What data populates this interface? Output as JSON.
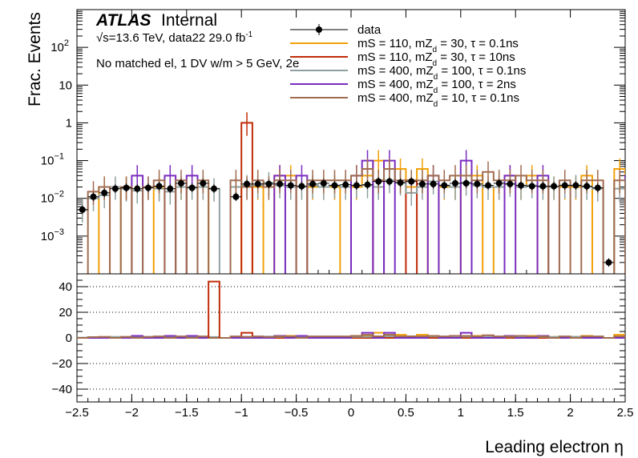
{
  "chart_data": {
    "type": "histogram",
    "x_range": [
      -2.5,
      2.5
    ],
    "xlabel": "Leading electron η",
    "ylabel": "Frac. Events",
    "top_panel": {
      "yscale": "log",
      "ylim": [
        0.0001,
        1000
      ],
      "y_ticks": [
        {
          "value": 0.001,
          "label": "10",
          "exp": "−3"
        },
        {
          "value": 0.01,
          "label": "10",
          "exp": "−2"
        },
        {
          "value": 0.1,
          "label": "10",
          "exp": "−1"
        },
        {
          "value": 1,
          "label": "1",
          "exp": ""
        },
        {
          "value": 10,
          "label": "10",
          "exp": ""
        },
        {
          "value": 100,
          "label": "10",
          "exp": "2"
        }
      ]
    },
    "ratio_panel": {
      "ylim": [
        -50,
        50
      ],
      "y_ticks": [
        40,
        20,
        0,
        -20,
        -40
      ],
      "gridlines": [
        40,
        20,
        0,
        -20,
        -40
      ]
    },
    "x_ticks": [
      "−2.5",
      "−2",
      "−1.5",
      "−1",
      "−0.5",
      "0",
      "0.5",
      "1",
      "1.5",
      "2",
      "2.5"
    ],
    "x_tick_values": [
      -2.5,
      -2,
      -1.5,
      -1,
      -0.5,
      0,
      0.5,
      1,
      1.5,
      2,
      2.5
    ],
    "bin_edges_start": -2.5,
    "bin_width": 0.1,
    "legend_position": "top-right",
    "series": [
      {
        "name": "data",
        "color": "#000000",
        "style": "points",
        "values": [
          0.005,
          0.011,
          0.014,
          0.018,
          0.019,
          0.018,
          0.019,
          0.021,
          0.018,
          0.025,
          0.019,
          0.025,
          0.018,
          null,
          0.011,
          0.024,
          0.024,
          0.024,
          0.024,
          0.022,
          0.021,
          0.024,
          0.025,
          0.022,
          0.023,
          0.022,
          0.023,
          0.028,
          0.028,
          0.026,
          0.028,
          0.024,
          0.024,
          0.022,
          0.025,
          0.025,
          0.024,
          0.022,
          0.025,
          0.024,
          0.022,
          0.021,
          0.021,
          0.021,
          0.022,
          0.022,
          0.021,
          0.019,
          0.0002,
          null,
          0.018,
          0.021,
          0.022,
          0.021,
          0.018,
          0.02,
          0.02,
          0.018,
          0.017,
          0.01,
          0.004
        ]
      },
      {
        "name": "mS = 110, mZ_d = 30, τ = 0.1ns",
        "color": "#f2a008",
        "style": "step",
        "values": [
          0,
          0,
          0.02,
          0.0,
          0.02,
          0,
          0,
          0.02,
          0,
          0.02,
          0,
          0.02,
          0,
          0,
          0.02,
          0.0,
          0.02,
          0,
          0.04,
          0.04,
          0,
          0.02,
          0.02,
          0.02,
          0,
          0.02,
          0.04,
          0.1,
          0.06,
          0.06,
          0.02,
          0.06,
          0,
          0.02,
          0.02,
          0,
          0.04,
          0,
          0.02,
          0.04,
          0.02,
          0.04,
          0,
          0.02,
          0.02,
          0.02,
          0.04,
          0,
          0,
          0.06,
          0.02,
          0,
          0.02,
          0.02,
          0.02,
          0,
          0.02,
          0,
          0,
          0,
          0
        ]
      },
      {
        "name": "mS = 110, mZ_d = 30, τ = 10ns",
        "color": "#c02c08",
        "style": "step",
        "values": [
          0,
          0,
          0,
          0,
          0,
          0,
          0,
          0,
          0,
          0,
          0,
          0,
          0,
          0,
          0,
          1.0,
          0,
          0,
          0,
          0,
          0,
          0,
          0,
          0,
          0,
          0,
          0,
          0.03,
          0,
          0,
          0.03,
          0,
          0,
          0,
          0,
          0,
          0,
          0,
          0,
          0,
          0,
          0,
          0,
          0,
          0,
          0,
          0,
          0,
          0,
          0,
          0,
          0,
          0,
          0,
          0,
          0,
          0,
          0,
          0,
          0,
          0
        ]
      },
      {
        "name": "mS = 400, mZ_d = 100, τ = 0.1ns",
        "color": "#90a0a0",
        "style": "step",
        "values": [
          0.005,
          0.01,
          0.012,
          0.02,
          0.018,
          0.016,
          0.02,
          0.018,
          0.015,
          0.02,
          0.02,
          0.02,
          0.018,
          0,
          0.02,
          0.022,
          0.022,
          0.026,
          0.022,
          0.02,
          0.02,
          0.022,
          0.02,
          0.022,
          0.02,
          0.022,
          0.022,
          0.02,
          0.03,
          0.026,
          0.014,
          0.02,
          0.028,
          0.022,
          0.02,
          0.026,
          0.022,
          0.02,
          0.02,
          0.024,
          0.02,
          0.022,
          0.02,
          0.02,
          0.022,
          0.022,
          0.02,
          0.018,
          0,
          0.018,
          0.02,
          0.022,
          0.02,
          0.02,
          0.02,
          0.02,
          0.02,
          0.018,
          0.016,
          0.008,
          0.004
        ]
      },
      {
        "name": "mS = 400, mZ_d = 100, τ = 2ns",
        "color": "#7a2cc0",
        "style": "step",
        "values": [
          0,
          0,
          0,
          0,
          0,
          0.04,
          0,
          0,
          0.04,
          0,
          0.04,
          0,
          0,
          0,
          0,
          0,
          0,
          0,
          0.04,
          0,
          0.04,
          0,
          0,
          0,
          0,
          0.04,
          0.1,
          0,
          0.1,
          0,
          0,
          0,
          0.04,
          0,
          0,
          0.1,
          0,
          0,
          0,
          0.04,
          0,
          0,
          0.04,
          0,
          0,
          0,
          0,
          0,
          0,
          0,
          0.04,
          0,
          0.04,
          0,
          0.04,
          0,
          0,
          0.04,
          0,
          0,
          0
        ]
      },
      {
        "name": "mS = 400, mZ_d = 10, τ = 0.1ns",
        "color": "#a06c50",
        "style": "step",
        "values": [
          0,
          0.015,
          0.02,
          0,
          0.02,
          0,
          0.02,
          0.03,
          0,
          0.03,
          0,
          0.03,
          0,
          0,
          0.03,
          0.02,
          0.03,
          0.02,
          0.03,
          0.03,
          0,
          0.03,
          0.03,
          0.03,
          0.03,
          0.04,
          0.06,
          0.03,
          0.06,
          0.03,
          0.03,
          0.03,
          0.04,
          0.03,
          0.04,
          0.04,
          0.03,
          0.05,
          0.03,
          0.03,
          0.04,
          0.03,
          0.03,
          0,
          0.03,
          0,
          0.03,
          0.03,
          0,
          0.03,
          0,
          0.03,
          0.03,
          0.03,
          0.03,
          0.03,
          0.03,
          0.03,
          0,
          0,
          0
        ]
      }
    ],
    "ratio_spikes": [
      {
        "x": -1.25,
        "value": 44,
        "color": "#c02c08"
      }
    ]
  },
  "annotations": {
    "atlas": "ATLAS",
    "internal": "Internal",
    "energy": "√s=13.6 TeV, data22 29.0 fb",
    "energy_exp": "-1",
    "selection": "No matched el, 1 DV w/m > 5 GeV, 2e"
  },
  "legend": [
    {
      "label": "data",
      "color": "#000000",
      "marker": "point"
    },
    {
      "label": "mS = 110, mZ",
      "sub": "d",
      "rest": " = 30, τ = 0.1ns",
      "color": "#f2a008",
      "marker": "line"
    },
    {
      "label": "mS = 110, mZ",
      "sub": "d",
      "rest": " = 30, τ = 10ns",
      "color": "#c02c08",
      "marker": "line"
    },
    {
      "label": "mS = 400, mZ",
      "sub": "d",
      "rest": " = 100, τ = 0.1ns",
      "color": "#90a0a0",
      "marker": "line"
    },
    {
      "label": "mS = 400, mZ",
      "sub": "d",
      "rest": " = 100, τ = 2ns",
      "color": "#7a2cc0",
      "marker": "line"
    },
    {
      "label": "mS = 400, mZ",
      "sub": "d",
      "rest": " = 10, τ = 0.1ns",
      "color": "#a06c50",
      "marker": "line"
    }
  ]
}
